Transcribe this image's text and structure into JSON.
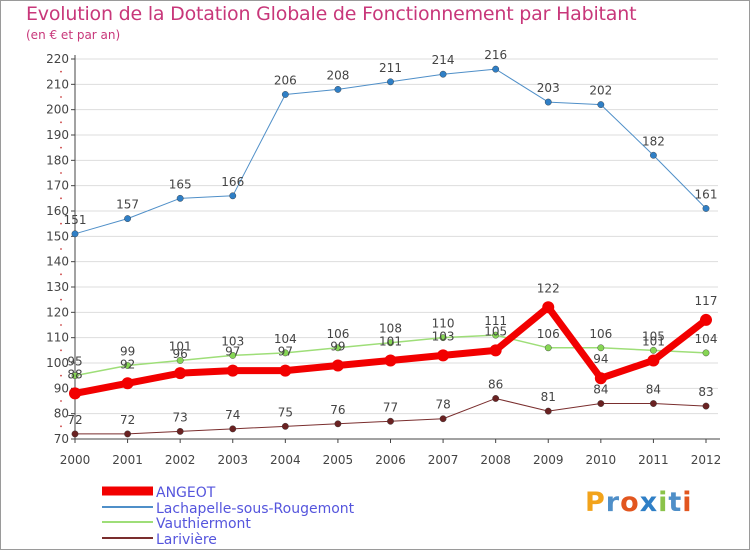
{
  "chart_data": {
    "type": "line",
    "title": "Evolution de la Dotation Globale de Fonctionnement par Habitant",
    "subtitle": "(en € et par an)",
    "xlabel": "",
    "ylabel": "",
    "ylim": [
      70,
      220
    ],
    "yticks": [
      70,
      80,
      90,
      100,
      110,
      120,
      130,
      140,
      150,
      160,
      170,
      180,
      190,
      200,
      210,
      220
    ],
    "categories": [
      "2000",
      "2001",
      "2002",
      "2003",
      "2004",
      "2005",
      "2006",
      "2007",
      "2008",
      "2009",
      "2010",
      "2011",
      "2012"
    ],
    "grid": "horizontal",
    "legend_position": "bottom-left",
    "series": [
      {
        "name": "Lachapelle-sous-Rougemont",
        "color": "#4f8fc8",
        "marker": "#2f7fc6",
        "width": 1,
        "values": [
          151,
          157,
          165,
          166,
          206,
          208,
          211,
          214,
          216,
          203,
          202,
          182,
          161
        ]
      },
      {
        "name": "Vauthiermont",
        "color": "#9ede78",
        "marker": "#86d654",
        "width": 1.5,
        "values": [
          95,
          99,
          101,
          103,
          104,
          106,
          108,
          110,
          111,
          106,
          106,
          105,
          104
        ]
      },
      {
        "name": "Larivière",
        "color": "#7a2e2e",
        "marker": "#6a2222",
        "width": 1,
        "values": [
          72,
          72,
          73,
          74,
          75,
          76,
          77,
          78,
          86,
          81,
          84,
          84,
          83
        ]
      },
      {
        "name": "ANGEOT",
        "color": "#f20000",
        "marker": "#f20000",
        "width": 7,
        "values": [
          88,
          92,
          96,
          97,
          97,
          99,
          101,
          103,
          105,
          122,
          94,
          101,
          117
        ]
      }
    ],
    "legend_order": [
      "ANGEOT",
      "Lachapelle-sous-Rougemont",
      "Vauthiermont",
      "Larivière"
    ]
  },
  "branding": {
    "logo_text": "Proxiti",
    "logo_colors": [
      "#f2a31b",
      "#4f8fc8",
      "#e2561f",
      "#2f7fc6",
      "#8bc34a",
      "#4f8fc8",
      "#e2561f"
    ]
  },
  "style": {
    "title_color": "#c8377a",
    "legend_text_color": "#5555dd",
    "axis_color": "#444444",
    "grid_color": "#dddddd"
  }
}
